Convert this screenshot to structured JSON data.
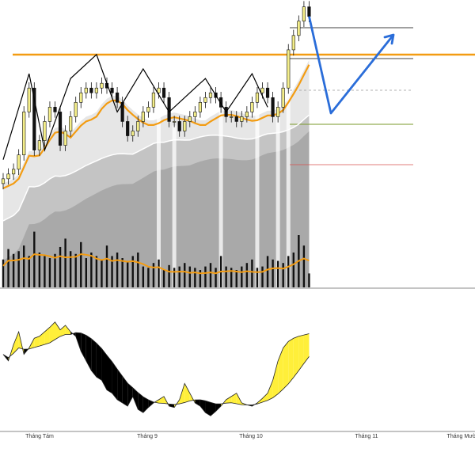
{
  "chart_data": {
    "type": "candlestick",
    "colors": {
      "up_candle": "#f5ef8a",
      "down_candle": "#111111",
      "ma_fast": "#f39c12",
      "ma_slow": "#ffffff",
      "resistance_line": "#f39c12",
      "projection_arrow": "#2a6dd9",
      "zigzag": "#000000",
      "volume_bar": "#111111",
      "oscillator_positive": "#ffef3a",
      "oscillator_negative": "#000000",
      "panel_border": "#888888"
    },
    "x_ticks": [
      "Tháng Tám",
      "Tháng 9",
      "Tháng 10",
      "Tháng 11",
      "Tháng Mười Hai"
    ],
    "price_ylim": [
      64,
      122
    ],
    "closes": [
      68,
      69,
      70,
      73,
      82,
      87,
      74,
      76,
      80,
      83,
      82,
      75,
      78,
      81,
      84,
      86,
      87,
      86,
      87,
      88,
      87,
      86,
      84,
      80,
      77,
      78,
      80,
      82,
      83,
      86,
      87,
      85,
      80,
      80,
      78,
      80,
      81,
      82,
      84,
      85,
      86,
      85,
      83,
      81,
      81,
      80,
      81,
      82,
      84,
      86,
      87,
      85,
      81,
      83,
      87,
      95,
      98,
      101,
      104,
      102
    ],
    "resistance_level": 94,
    "projection_path": [
      [
        102,
        90
      ],
      [
        104,
        121
      ]
    ],
    "volume_ylim": [
      0,
      100
    ],
    "volumes": [
      40,
      55,
      48,
      52,
      60,
      45,
      80,
      50,
      45,
      42,
      48,
      58,
      70,
      52,
      48,
      65,
      42,
      50,
      45,
      40,
      60,
      45,
      50,
      42,
      38,
      45,
      50,
      30,
      28,
      35,
      40,
      25,
      32,
      28,
      30,
      35,
      30,
      28,
      25,
      30,
      35,
      28,
      45,
      30,
      28,
      25,
      30,
      35,
      40,
      28,
      30,
      45,
      40,
      38,
      35,
      45,
      50,
      75,
      60,
      20
    ],
    "oscillator_ylim": [
      -100,
      100
    ],
    "oscillator": [
      20,
      10,
      35,
      55,
      20,
      30,
      45,
      48,
      55,
      62,
      70,
      58,
      65,
      55,
      48,
      25,
      10,
      -5,
      -15,
      -20,
      -35,
      -40,
      -50,
      -55,
      -60,
      -45,
      -65,
      -70,
      -62,
      -55,
      -50,
      -45,
      -60,
      -62,
      -50,
      -25,
      -40,
      -55,
      -60,
      -70,
      -75,
      -68,
      -60,
      -50,
      -45,
      -40,
      -55,
      -58,
      -60,
      -55,
      -48,
      -40,
      -20,
      10,
      30,
      40,
      45,
      48,
      50,
      52
    ]
  }
}
